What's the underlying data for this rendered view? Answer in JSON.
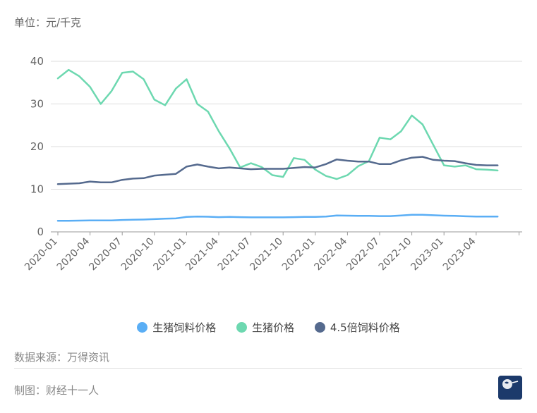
{
  "unit_label": "单位：元/千克",
  "source_text": "数据来源：万得资讯",
  "credit_text": "制图：财经十一人",
  "logo": {
    "text": "财经十一人",
    "icon": "globe-logo"
  },
  "colors": {
    "feed": "#5aaef5",
    "hog": "#6dd8b0",
    "feed45": "#556a8e",
    "grid": "#dddddd",
    "axis": "#666666"
  },
  "chart_data": {
    "type": "line",
    "title": "",
    "xlabel": "",
    "ylabel": "",
    "ylim": [
      0,
      45
    ],
    "yticks": [
      0,
      10,
      20,
      30,
      40
    ],
    "grid": true,
    "legend_position": "bottom",
    "x": [
      "2020-01",
      "2020-02",
      "2020-03",
      "2020-04",
      "2020-05",
      "2020-06",
      "2020-07",
      "2020-08",
      "2020-09",
      "2020-10",
      "2020-11",
      "2020-12",
      "2021-01",
      "2021-02",
      "2021-03",
      "2021-04",
      "2021-05",
      "2021-06",
      "2021-07",
      "2021-08",
      "2021-09",
      "2021-10",
      "2021-11",
      "2021-12",
      "2022-01",
      "2022-02",
      "2022-03",
      "2022-04",
      "2022-05",
      "2022-06",
      "2022-07",
      "2022-08",
      "2022-09",
      "2022-10",
      "2022-11",
      "2022-12",
      "2023-01",
      "2023-02",
      "2023-03",
      "2023-04",
      "2023-05",
      "2023-06"
    ],
    "xtick_labels": [
      "2020-01",
      "2020-04",
      "2020-07",
      "2020-10",
      "2021-01",
      "2021-04",
      "2021-07",
      "2021-10",
      "2022-01",
      "2022-04",
      "2022-07",
      "2022-10",
      "2023-01",
      "2023-04"
    ],
    "series": [
      {
        "name": "生猪饲料价格",
        "color_key": "feed",
        "values": [
          2.6,
          2.6,
          2.65,
          2.7,
          2.7,
          2.7,
          2.8,
          2.85,
          2.9,
          3.0,
          3.1,
          3.15,
          3.5,
          3.6,
          3.55,
          3.45,
          3.5,
          3.45,
          3.4,
          3.4,
          3.4,
          3.4,
          3.45,
          3.5,
          3.5,
          3.6,
          3.85,
          3.8,
          3.75,
          3.75,
          3.7,
          3.7,
          3.85,
          4.0,
          4.0,
          3.9,
          3.8,
          3.75,
          3.65,
          3.6,
          3.6,
          3.6
        ]
      },
      {
        "name": "生猪价格",
        "color_key": "hog",
        "values": [
          36,
          38,
          36.5,
          34,
          30,
          33,
          37.3,
          37.6,
          35.8,
          31,
          29.7,
          33.6,
          35.8,
          30,
          28.2,
          23.6,
          19.6,
          15.1,
          16.1,
          15.2,
          13.3,
          12.9,
          17.3,
          16.9,
          14.6,
          13.1,
          12.4,
          13.3,
          15.4,
          16.6,
          22.1,
          21.7,
          23.6,
          27.3,
          25.2,
          20.4,
          15.6,
          15.3,
          15.6,
          14.7,
          14.6,
          14.4
        ]
      },
      {
        "name": "4.5倍饲料价格",
        "color_key": "feed45",
        "values": [
          11.2,
          11.3,
          11.4,
          11.8,
          11.6,
          11.6,
          12.2,
          12.5,
          12.6,
          13.2,
          13.4,
          13.6,
          15.3,
          15.8,
          15.3,
          14.9,
          15.1,
          14.9,
          14.7,
          14.8,
          14.8,
          14.8,
          15.0,
          15.2,
          15.1,
          15.9,
          17.0,
          16.7,
          16.5,
          16.5,
          15.9,
          15.9,
          16.8,
          17.4,
          17.6,
          16.9,
          16.7,
          16.6,
          16.1,
          15.7,
          15.6,
          15.6
        ]
      }
    ]
  }
}
